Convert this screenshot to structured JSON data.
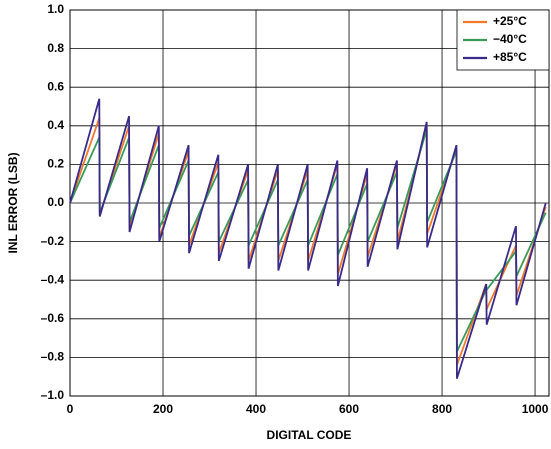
{
  "chart_data": {
    "type": "line",
    "x_label": "DIGITAL CODE",
    "y_label": "INL ERROR (LSB)",
    "x": [
      0,
      63,
      64,
      127,
      128,
      191,
      192,
      255,
      256,
      319,
      320,
      383,
      384,
      447,
      448,
      511,
      512,
      575,
      576,
      639,
      640,
      703,
      704,
      767,
      768,
      831,
      832,
      895,
      896,
      959,
      960,
      1023
    ],
    "series": [
      {
        "name": "+25°C",
        "color": "#f07a2a",
        "values": [
          0,
          0.44,
          -0.06,
          0.4,
          -0.13,
          0.36,
          -0.18,
          0.27,
          -0.22,
          0.21,
          -0.26,
          0.17,
          -0.3,
          0.17,
          -0.3,
          0.17,
          -0.3,
          0.2,
          -0.37,
          0.15,
          -0.28,
          0.2,
          -0.2,
          0.4,
          -0.16,
          0.28,
          -0.84,
          -0.42,
          -0.55,
          -0.22,
          -0.48,
          -0.02
        ]
      },
      {
        "name": "−40°C",
        "color": "#3a9a5a",
        "values": [
          0,
          0.34,
          -0.05,
          0.34,
          -0.1,
          0.3,
          -0.13,
          0.22,
          -0.17,
          0.16,
          -0.2,
          0.12,
          -0.22,
          0.12,
          -0.22,
          0.12,
          -0.22,
          0.15,
          -0.27,
          0.1,
          -0.2,
          0.16,
          -0.13,
          0.38,
          -0.1,
          0.27,
          -0.77,
          -0.45,
          -0.45,
          -0.25,
          -0.38,
          -0.05
        ]
      },
      {
        "name": "+85°C",
        "color": "#3a2a8a",
        "values": [
          0,
          0.54,
          -0.07,
          0.45,
          -0.15,
          0.4,
          -0.2,
          0.3,
          -0.26,
          0.25,
          -0.3,
          0.2,
          -0.34,
          0.2,
          -0.35,
          0.2,
          -0.35,
          0.22,
          -0.43,
          0.18,
          -0.33,
          0.22,
          -0.24,
          0.42,
          -0.23,
          0.3,
          -0.91,
          -0.42,
          -0.63,
          -0.12,
          -0.53,
          0
        ]
      }
    ],
    "xlim": [
      0,
      1030
    ],
    "xticks": [
      0,
      200,
      400,
      600,
      800,
      1000
    ],
    "ylim": [
      -1,
      1
    ],
    "yticks": [
      {
        "value": -1,
        "label": "–1.0"
      },
      {
        "value": -0.8,
        "label": "–0.8"
      },
      {
        "value": -0.6,
        "label": "–0.6"
      },
      {
        "value": -0.4,
        "label": "–0.4"
      },
      {
        "value": -0.2,
        "label": "–0.2"
      },
      {
        "value": 0,
        "label": "0.0"
      },
      {
        "value": 0.2,
        "label": "0.2"
      },
      {
        "value": 0.4,
        "label": "0.4"
      },
      {
        "value": 0.6,
        "label": "0.6"
      },
      {
        "value": 0.8,
        "label": "0.8"
      },
      {
        "value": 1,
        "label": "1.0"
      }
    ],
    "grid": true,
    "legend": "top-right"
  }
}
